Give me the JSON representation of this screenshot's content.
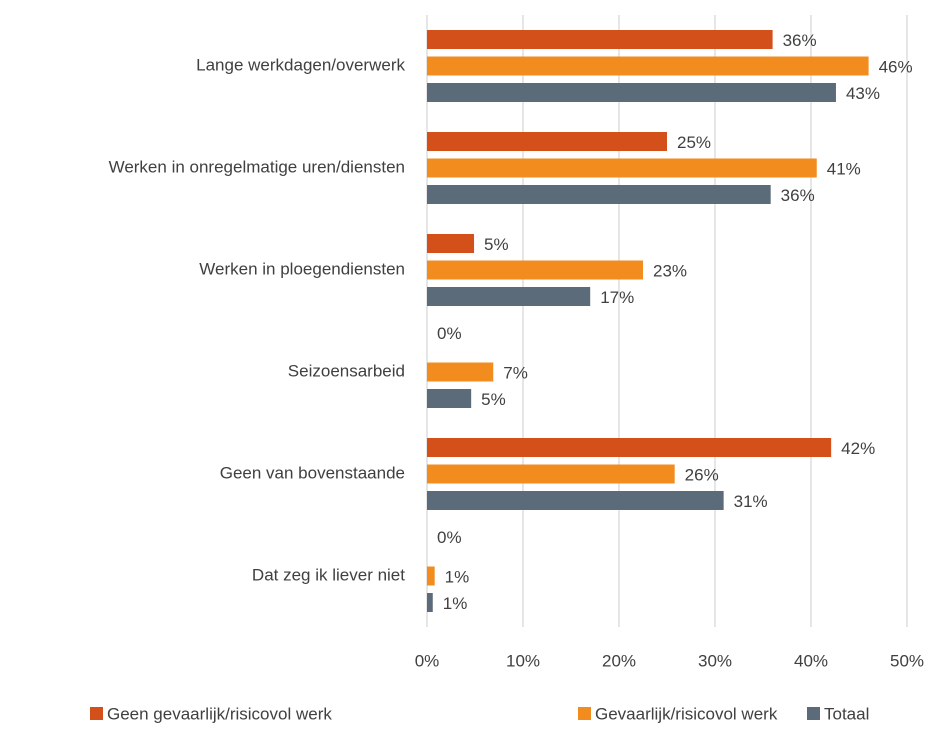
{
  "chart_data": {
    "type": "bar",
    "orientation": "horizontal",
    "categories": [
      "Lange werkdagen/overwerk",
      "Werken in onregelmatige uren/diensten",
      "Werken in ploegendiensten",
      "Seizoensarbeid",
      "Geen van bovenstaande",
      "Dat zeg ik liever niet"
    ],
    "series": [
      {
        "name": "Geen gevaarlijk/risicovol werk",
        "color": "#d4501b",
        "values": [
          36,
          25,
          4.9,
          0,
          42.1,
          0
        ],
        "value_labels": [
          "36%",
          "25%",
          "5%",
          "0%",
          "42%",
          "0%"
        ]
      },
      {
        "name": "Gevaarlijk/risicovol werk",
        "color": "#f28c1e",
        "values": [
          46,
          40.6,
          22.5,
          6.9,
          25.8,
          0.8
        ],
        "value_labels": [
          "46%",
          "41%",
          "23%",
          "7%",
          "26%",
          "1%"
        ]
      },
      {
        "name": "Totaal",
        "color": "#5c6b79",
        "values": [
          42.6,
          35.8,
          17,
          4.6,
          30.9,
          0.6
        ],
        "value_labels": [
          "43%",
          "36%",
          "17%",
          "5%",
          "31%",
          "1%"
        ]
      }
    ],
    "xlim": [
      0,
      50
    ],
    "xticks": [
      {
        "value": 0,
        "label": "0%"
      },
      {
        "value": 10,
        "label": "10%"
      },
      {
        "value": 20,
        "label": "20%"
      },
      {
        "value": 30,
        "label": "30%"
      },
      {
        "value": 40,
        "label": "40%"
      },
      {
        "value": 50,
        "label": "50%"
      }
    ],
    "grid": true,
    "legend": "bottom"
  }
}
